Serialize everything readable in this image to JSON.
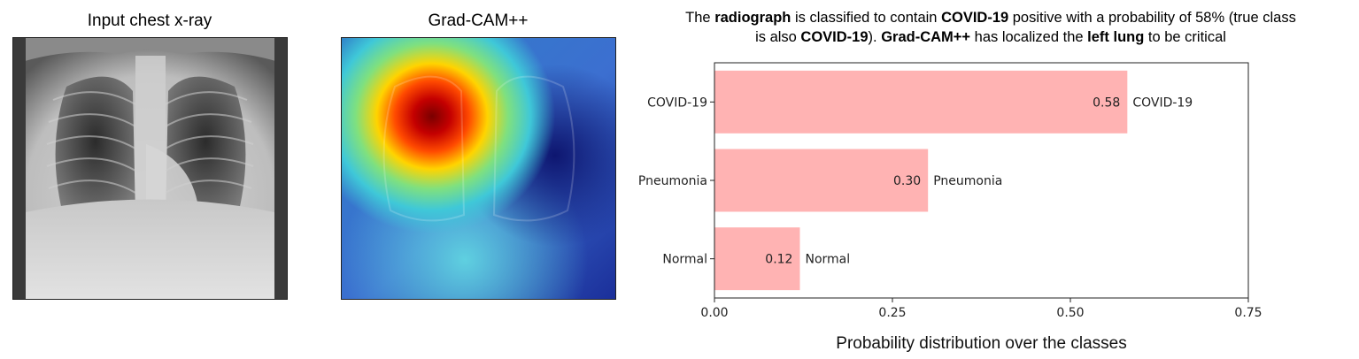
{
  "panels": {
    "xray_title": "Input chest x-ray",
    "cam_title": "Grad-CAM++"
  },
  "caption": {
    "line1": [
      {
        "text": "The ",
        "bold": false
      },
      {
        "text": "radiograph",
        "bold": true
      },
      {
        "text": " is classified to contain ",
        "bold": false
      },
      {
        "text": "COVID-19",
        "bold": true
      },
      {
        "text": " positive with a probability of 58% (true class",
        "bold": false
      }
    ],
    "line2": [
      {
        "text": "is also ",
        "bold": false
      },
      {
        "text": "COVID-19",
        "bold": true
      },
      {
        "text": "). ",
        "bold": false
      },
      {
        "text": "Grad-CAM++",
        "bold": true
      },
      {
        "text": " has localized the ",
        "bold": false
      },
      {
        "text": "left lung",
        "bold": true
      },
      {
        "text": " to be critical",
        "bold": false
      }
    ]
  },
  "chart_data": {
    "type": "bar",
    "orientation": "horizontal",
    "categories": [
      "COVID-19",
      "Pneumonia",
      "Normal"
    ],
    "values": [
      0.58,
      0.3,
      0.12
    ],
    "value_labels": [
      "0.58",
      "0.30",
      "0.12"
    ],
    "xlim": [
      0,
      0.75
    ],
    "xticks": [
      0.0,
      0.25,
      0.5,
      0.75
    ],
    "xtick_labels": [
      "0.00",
      "0.25",
      "0.50",
      "0.75"
    ],
    "xlabel": "Probability distribution over the classes",
    "ylabel": "",
    "bar_color": "#ffb3b3",
    "grid": false
  }
}
